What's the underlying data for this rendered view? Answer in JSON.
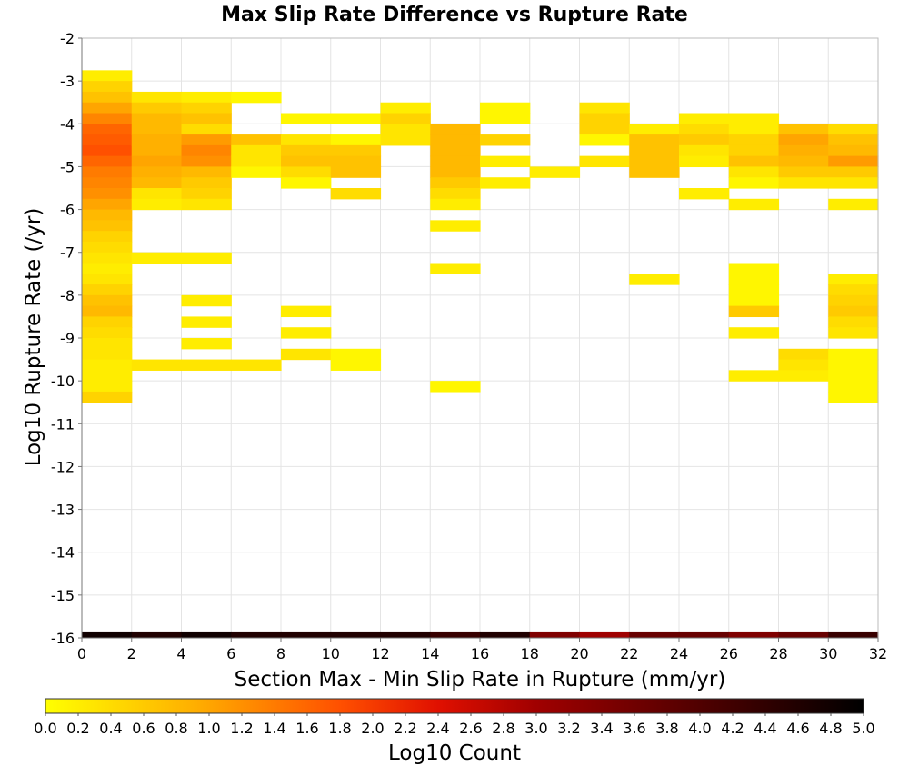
{
  "chart_data": {
    "type": "heatmap",
    "title": "Max Slip Rate Difference vs Rupture Rate",
    "xlabel": "Section Max - Min Slip Rate in Rupture (mm/yr)",
    "ylabel": "Log10 Rupture Rate (/yr)",
    "xlim": [
      0,
      32
    ],
    "ylim": [
      -16,
      -2
    ],
    "x_ticks": [
      0,
      2,
      4,
      6,
      8,
      10,
      12,
      14,
      16,
      18,
      20,
      22,
      24,
      26,
      28,
      30,
      32
    ],
    "y_ticks": [
      -2,
      -3,
      -4,
      -5,
      -6,
      -7,
      -8,
      -9,
      -10,
      -11,
      -12,
      -13,
      -14,
      -15,
      -16
    ],
    "grid": true,
    "x_bin_width": 2,
    "y_bin_height": 0.25,
    "colorbar": {
      "label": "Log10 Count",
      "min": 0.0,
      "max": 5.0,
      "ticks": [
        "0.0",
        "0.2",
        "0.4",
        "0.6",
        "0.8",
        "1.0",
        "1.2",
        "1.4",
        "1.6",
        "1.8",
        "2.0",
        "2.2",
        "2.4",
        "2.6",
        "2.8",
        "3.0",
        "3.2",
        "3.4",
        "3.6",
        "3.8",
        "4.0",
        "4.2",
        "4.4",
        "4.6",
        "4.8",
        "5.0"
      ],
      "stops": [
        {
          "v": 0.0,
          "color": "#ffff00"
        },
        {
          "v": 0.9,
          "color": "#ffb000"
        },
        {
          "v": 1.8,
          "color": "#ff5000"
        },
        {
          "v": 2.4,
          "color": "#e01000"
        },
        {
          "v": 3.0,
          "color": "#a00000"
        },
        {
          "v": 4.0,
          "color": "#500000"
        },
        {
          "v": 5.0,
          "color": "#000000"
        }
      ]
    },
    "columns": [
      {
        "x0": 0,
        "y_top": -2.75,
        "values": [
          0.2,
          0.5,
          0.7,
          1.0,
          1.3,
          1.6,
          1.7,
          1.8,
          1.6,
          1.4,
          1.3,
          1.2,
          1.0,
          0.8,
          0.7,
          0.5,
          0.4,
          0.3,
          0.2,
          0.3,
          0.5,
          0.7,
          0.8,
          0.5,
          0.4,
          0.3,
          0.3,
          0.2,
          0.2,
          0.2,
          0.5
        ]
      },
      {
        "x0": 2,
        "y_top": -3.25,
        "values": [
          0.3,
          0.6,
          0.8,
          0.8,
          0.9,
          0.9,
          1.0,
          0.9,
          0.8,
          0.3,
          0.2,
          null,
          null,
          null,
          null,
          0.2,
          null,
          null,
          null,
          null,
          null,
          null,
          null,
          null,
          null,
          0.3
        ]
      },
      {
        "x0": 4,
        "y_top": -3.25,
        "values": [
          0.2,
          0.5,
          0.7,
          0.4,
          1.1,
          1.3,
          1.2,
          0.8,
          0.6,
          0.5,
          0.3,
          null,
          null,
          null,
          null,
          0.2,
          null,
          null,
          null,
          0.2,
          null,
          0.2,
          null,
          0.2,
          null,
          0.3
        ]
      },
      {
        "x0": 6,
        "y_top": -3.25,
        "values": [
          0.1,
          null,
          null,
          null,
          0.7,
          0.3,
          0.3,
          0.1,
          null,
          null,
          null,
          null,
          null,
          null,
          null,
          null,
          null,
          null,
          null,
          null,
          null,
          null,
          null,
          null,
          null,
          0.3
        ]
      },
      {
        "x0": 8,
        "y_top": -3.75,
        "values": [
          0.1,
          null,
          0.3,
          0.6,
          0.7,
          0.4,
          0.1,
          null,
          null,
          null,
          null,
          null,
          null,
          null,
          null,
          null,
          null,
          null,
          0.2,
          null,
          0.2,
          null,
          0.3
        ]
      },
      {
        "x0": 10,
        "y_top": -3.75,
        "values": [
          0.1,
          null,
          0.1,
          0.6,
          0.7,
          0.7,
          null,
          0.4,
          null,
          null,
          null,
          null,
          null,
          null,
          null,
          null,
          null,
          null,
          null,
          null,
          null,
          null,
          0.1,
          0.1
        ]
      },
      {
        "x0": 12,
        "y_top": -3.5,
        "values": [
          0.2,
          0.5,
          0.3,
          0.3
        ]
      },
      {
        "x0": 14,
        "y_top": -4.0,
        "values": [
          0.8,
          0.8,
          0.8,
          0.8,
          0.8,
          0.6,
          0.4,
          0.2,
          null,
          0.2,
          null,
          null,
          null,
          0.2,
          null,
          null,
          null,
          null,
          null,
          null,
          null,
          null,
          null,
          null,
          0.1
        ]
      },
      {
        "x0": 16,
        "y_top": -3.5,
        "values": [
          0.1,
          0.1,
          null,
          0.5,
          null,
          0.2,
          null,
          0.2
        ]
      },
      {
        "x0": 18,
        "y_top": -5.0,
        "values": [
          0.2
        ]
      },
      {
        "x0": 20,
        "y_top": -3.5,
        "values": [
          0.3,
          0.5,
          0.5,
          0.1,
          null,
          0.3
        ]
      },
      {
        "x0": 22,
        "y_top": -4.0,
        "values": [
          0.2,
          0.7,
          0.7,
          0.7,
          0.7,
          null,
          null,
          null,
          null,
          null,
          null,
          null,
          null,
          null,
          0.2
        ]
      },
      {
        "x0": 24,
        "y_top": -3.75,
        "values": [
          0.2,
          0.4,
          0.6,
          0.3,
          0.2,
          null,
          null,
          0.2
        ]
      },
      {
        "x0": 26,
        "y_top": -3.75,
        "values": [
          0.2,
          0.2,
          0.5,
          0.5,
          0.7,
          0.3,
          0.1,
          null,
          0.2,
          null,
          null,
          null,
          null,
          null,
          0.1,
          0.1,
          0.1,
          0.1,
          0.6,
          null,
          0.2,
          null,
          null,
          null,
          0.2
        ]
      },
      {
        "x0": 28,
        "y_top": -4.0,
        "values": [
          0.7,
          1.0,
          0.9,
          0.8,
          0.6,
          0.3,
          null,
          null,
          null,
          null,
          null,
          null,
          null,
          null,
          null,
          null,
          null,
          null,
          null,
          null,
          null,
          0.4,
          0.3,
          0.2
        ]
      },
      {
        "x0": 30,
        "y_top": -4.0,
        "values": [
          0.4,
          0.7,
          0.8,
          1.1,
          0.6,
          0.3,
          null,
          0.2,
          null,
          null,
          null,
          null,
          null,
          null,
          0.2,
          0.4,
          0.5,
          0.6,
          0.4,
          0.3,
          null,
          0.1,
          0.1,
          0.1,
          0.1,
          0.1
        ]
      }
    ],
    "bottom_row": {
      "y0": -16,
      "y1": -15.85,
      "values": [
        4.8,
        4.6,
        4.8,
        4.6,
        4.6,
        4.6,
        4.6,
        4.3,
        4.6,
        3.4,
        3.0,
        3.7,
        3.7,
        3.4,
        3.7,
        4.3
      ]
    }
  }
}
